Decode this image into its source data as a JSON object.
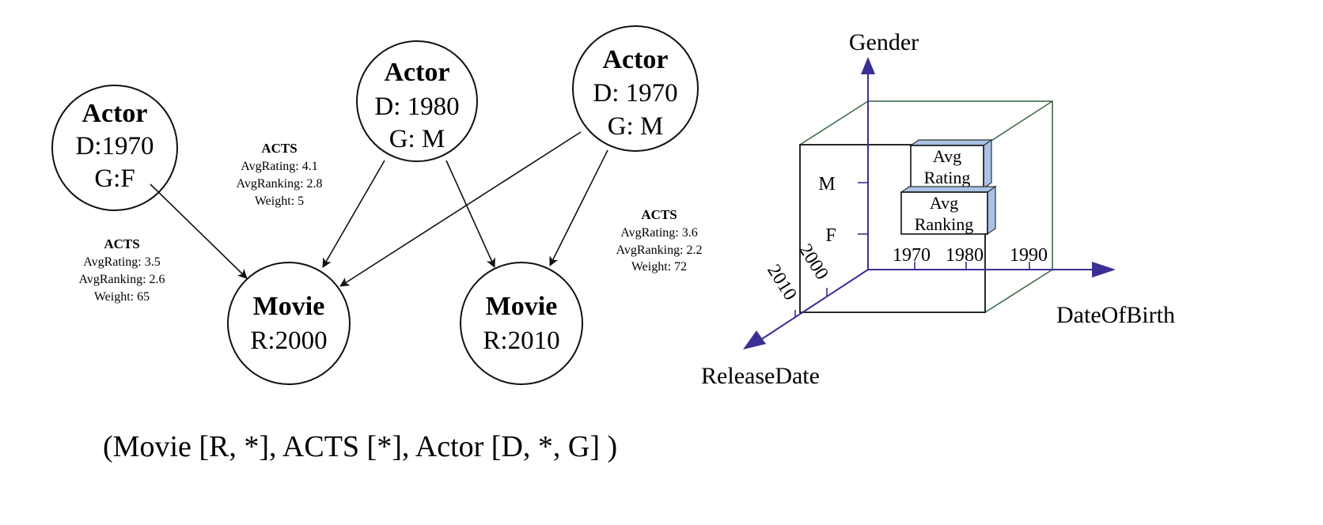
{
  "graph": {
    "nodes": [
      {
        "id": "actor1",
        "title": "Actor",
        "lines": [
          "D:1970",
          "G:F"
        ]
      },
      {
        "id": "actor2",
        "title": "Actor",
        "lines": [
          "D: 1980",
          "G: M"
        ]
      },
      {
        "id": "actor3",
        "title": "Actor",
        "lines": [
          "D: 1970",
          "G: M"
        ]
      },
      {
        "id": "movie1",
        "title": "Movie",
        "lines": [
          "R:2000"
        ]
      },
      {
        "id": "movie2",
        "title": "Movie",
        "lines": [
          "R:2010"
        ]
      }
    ],
    "edge_labels": [
      {
        "title": "ACTS",
        "lines": [
          "AvgRating: 3.5",
          "AvgRanking: 2.6",
          "Weight: 65"
        ]
      },
      {
        "title": "ACTS",
        "lines": [
          "AvgRating: 4.1",
          "AvgRanking: 2.8",
          "Weight: 5"
        ]
      },
      {
        "title": "ACTS",
        "lines": [
          "AvgRating: 3.6",
          "AvgRanking: 2.2",
          "Weight: 72"
        ]
      }
    ]
  },
  "cube": {
    "axis_gender": "Gender",
    "axis_dob": "DateOfBirth",
    "axis_release": "ReleaseDate",
    "gender_ticks": [
      "M",
      "F"
    ],
    "dob_ticks": [
      "1970",
      "1980",
      "1990"
    ],
    "release_ticks": [
      "2000",
      "2010"
    ],
    "box1": [
      "Avg",
      "Rating"
    ],
    "box2": [
      "Avg",
      "Ranking"
    ],
    "axis_color": "#3a2f94",
    "cube_color": "#3f6b4a",
    "box_side_color": "#a9c2e6"
  },
  "caption": "(Movie [R, *], ACTS [*], Actor [D, *, G] )"
}
